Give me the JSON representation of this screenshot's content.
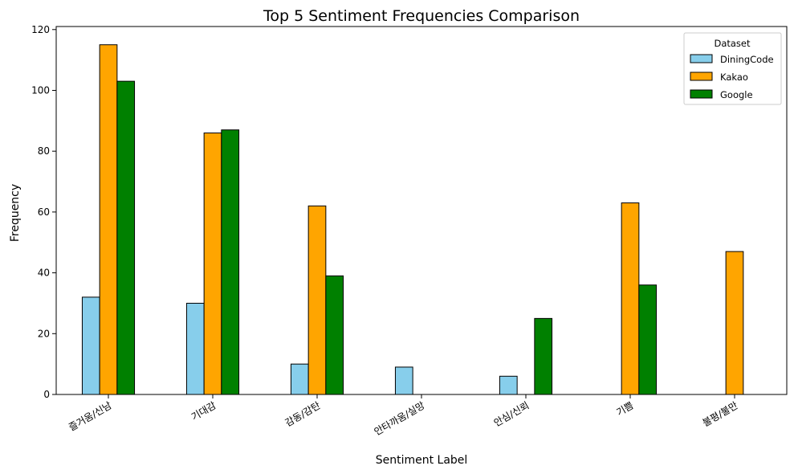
{
  "chart_data": {
    "type": "bar",
    "title": "Top 5 Sentiment Frequencies Comparison",
    "xlabel": "Sentiment Label",
    "ylabel": "Frequency",
    "ylim": [
      0,
      121
    ],
    "yticks": [
      0,
      20,
      40,
      60,
      80,
      100,
      120
    ],
    "categories": [
      "즐거움/신남",
      "기대감",
      "감동/감탄",
      "안타까움/실망",
      "안심/신뢰",
      "기쁨",
      "불평/불만"
    ],
    "series": [
      {
        "name": "DiningCode",
        "color": "#87ceeb",
        "values": [
          32,
          30,
          10,
          9,
          6,
          0,
          0
        ]
      },
      {
        "name": "Kakao",
        "color": "#ffa500",
        "values": [
          115,
          86,
          62,
          0,
          0,
          63,
          47
        ]
      },
      {
        "name": "Google",
        "color": "#008000",
        "values": [
          103,
          87,
          39,
          0,
          25,
          36,
          0
        ]
      }
    ],
    "legend": {
      "title": "Dataset",
      "placement": "top-right"
    },
    "grid": false
  }
}
